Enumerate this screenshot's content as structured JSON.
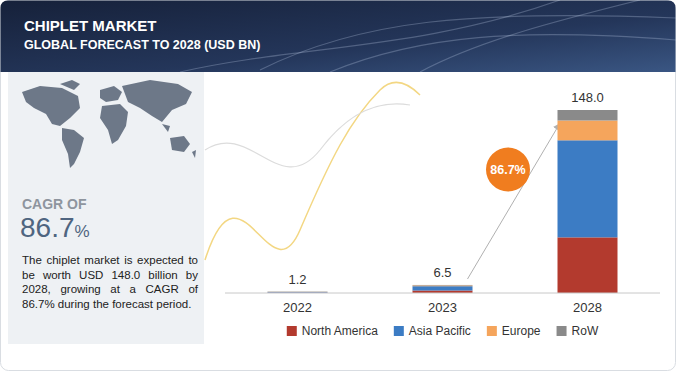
{
  "chart_data": {
    "type": "bar",
    "title": "CHIPLET MARKET",
    "subtitle": "GLOBAL FORECAST TO 2028 (USD BN)",
    "categories": [
      "2022",
      "2023",
      "2028"
    ],
    "series": [
      {
        "name": "North America",
        "color": "#b33a2e",
        "values": [
          0.35,
          2.0,
          45.0
        ]
      },
      {
        "name": "Asia Pacific",
        "color": "#3c7cc4",
        "values": [
          0.6,
          3.5,
          78.5
        ]
      },
      {
        "name": "Europe",
        "color": "#f5a55c",
        "values": [
          0.15,
          0.6,
          16.0
        ]
      },
      {
        "name": "RoW",
        "color": "#8a8a8a",
        "values": [
          0.1,
          0.4,
          8.5
        ]
      }
    ],
    "totals": [
      1.2,
      6.5,
      148.0
    ],
    "total_labels": [
      "1.2",
      "6.5",
      "148.0"
    ],
    "ylim": [
      0,
      148
    ],
    "stacked": true,
    "legend": "bottom",
    "grid": false,
    "tick_labels": "x",
    "annotations": {
      "cagr_heading": "CAGR OF",
      "cagr_value": "86.7",
      "cagr_unit": "%",
      "description": "The chiplet market is expected to be worth USD 148.0 billion by 2028, growing at a CAGR of 86.7% during the forecast period.",
      "badge": "86.7%"
    }
  }
}
